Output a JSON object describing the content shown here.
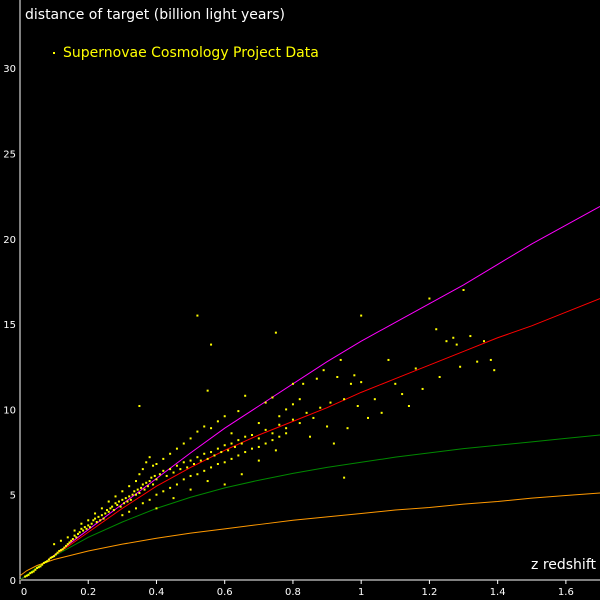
{
  "chart_data": {
    "type": "scatter",
    "ylabel": "distance of target (billion light years)",
    "xlabel": "z redshift",
    "xlim": [
      0,
      1.7
    ],
    "ylim": [
      0,
      34
    ],
    "x_ticks": [
      "0",
      "0.2",
      "0.4",
      "0.6",
      "0.8",
      "1",
      "1.2",
      "1.4",
      "1.6"
    ],
    "y_ticks": [
      "0",
      "5",
      "10",
      "15",
      "20",
      "25",
      "30"
    ],
    "legend": {
      "position": "top-left",
      "entries": [
        {
          "label": "Supernovae Cosmology Project Data",
          "color": "#ffff00"
        }
      ]
    },
    "grid": false,
    "series": [
      {
        "kind": "scatter",
        "name": "Supernovae Cosmology Project Data",
        "color": "#ffff00",
        "points": [
          [
            0.015,
            0.2
          ],
          [
            0.02,
            0.25
          ],
          [
            0.025,
            0.3
          ],
          [
            0.03,
            0.4
          ],
          [
            0.035,
            0.45
          ],
          [
            0.04,
            0.5
          ],
          [
            0.045,
            0.6
          ],
          [
            0.05,
            0.7
          ],
          [
            0.055,
            0.75
          ],
          [
            0.06,
            0.8
          ],
          [
            0.065,
            0.9
          ],
          [
            0.07,
            1.0
          ],
          [
            0.075,
            1.05
          ],
          [
            0.08,
            1.1
          ],
          [
            0.085,
            1.2
          ],
          [
            0.09,
            1.3
          ],
          [
            0.095,
            1.35
          ],
          [
            0.1,
            1.4
          ],
          [
            0.105,
            1.5
          ],
          [
            0.11,
            1.6
          ],
          [
            0.115,
            1.7
          ],
          [
            0.12,
            1.75
          ],
          [
            0.125,
            1.8
          ],
          [
            0.13,
            1.9
          ],
          [
            0.135,
            2.0
          ],
          [
            0.14,
            2.1
          ],
          [
            0.145,
            2.2
          ],
          [
            0.15,
            2.3
          ],
          [
            0.155,
            2.4
          ],
          [
            0.16,
            2.6
          ],
          [
            0.165,
            2.5
          ],
          [
            0.17,
            2.7
          ],
          [
            0.175,
            2.8
          ],
          [
            0.18,
            3.0
          ],
          [
            0.185,
            2.9
          ],
          [
            0.19,
            3.1
          ],
          [
            0.195,
            3.0
          ],
          [
            0.2,
            3.2
          ],
          [
            0.205,
            3.1
          ],
          [
            0.21,
            3.3
          ],
          [
            0.215,
            3.5
          ],
          [
            0.22,
            3.6
          ],
          [
            0.225,
            3.4
          ],
          [
            0.23,
            3.7
          ],
          [
            0.235,
            3.5
          ],
          [
            0.24,
            3.8
          ],
          [
            0.245,
            3.6
          ],
          [
            0.25,
            3.9
          ],
          [
            0.255,
            4.1
          ],
          [
            0.26,
            4.0
          ],
          [
            0.265,
            4.2
          ],
          [
            0.27,
            4.3
          ],
          [
            0.275,
            4.1
          ],
          [
            0.28,
            4.5
          ],
          [
            0.285,
            4.4
          ],
          [
            0.29,
            4.6
          ],
          [
            0.295,
            4.3
          ],
          [
            0.3,
            4.7
          ],
          [
            0.305,
            4.5
          ],
          [
            0.31,
            4.8
          ],
          [
            0.315,
            4.6
          ],
          [
            0.32,
            4.9
          ],
          [
            0.325,
            4.7
          ],
          [
            0.33,
            5.0
          ],
          [
            0.335,
            5.2
          ],
          [
            0.34,
            5.0
          ],
          [
            0.345,
            5.3
          ],
          [
            0.35,
            5.1
          ],
          [
            0.355,
            5.4
          ],
          [
            0.36,
            5.6
          ],
          [
            0.365,
            5.3
          ],
          [
            0.37,
            5.7
          ],
          [
            0.375,
            5.5
          ],
          [
            0.38,
            5.8
          ],
          [
            0.385,
            6.0
          ],
          [
            0.39,
            5.6
          ],
          [
            0.395,
            6.1
          ],
          [
            0.4,
            5.9
          ],
          [
            0.41,
            6.2
          ],
          [
            0.42,
            6.4
          ],
          [
            0.43,
            6.1
          ],
          [
            0.44,
            6.5
          ],
          [
            0.45,
            6.3
          ],
          [
            0.46,
            6.7
          ],
          [
            0.47,
            6.5
          ],
          [
            0.48,
            6.9
          ],
          [
            0.49,
            6.6
          ],
          [
            0.5,
            7.0
          ],
          [
            0.51,
            6.8
          ],
          [
            0.52,
            7.2
          ],
          [
            0.53,
            7.0
          ],
          [
            0.54,
            7.4
          ],
          [
            0.55,
            7.1
          ],
          [
            0.56,
            7.5
          ],
          [
            0.57,
            7.3
          ],
          [
            0.58,
            7.7
          ],
          [
            0.59,
            7.5
          ],
          [
            0.6,
            7.9
          ],
          [
            0.61,
            7.6
          ],
          [
            0.62,
            8.0
          ],
          [
            0.63,
            7.8
          ],
          [
            0.64,
            8.2
          ],
          [
            0.65,
            8.0
          ],
          [
            0.66,
            8.4
          ],
          [
            0.68,
            8.5
          ],
          [
            0.7,
            8.3
          ],
          [
            0.72,
            8.8
          ],
          [
            0.74,
            8.6
          ],
          [
            0.76,
            9.1
          ],
          [
            0.78,
            8.9
          ],
          [
            0.8,
            9.4
          ],
          [
            0.82,
            9.2
          ],
          [
            0.1,
            2.1
          ],
          [
            0.12,
            2.3
          ],
          [
            0.14,
            2.5
          ],
          [
            0.16,
            2.9
          ],
          [
            0.18,
            3.3
          ],
          [
            0.2,
            3.5
          ],
          [
            0.22,
            3.9
          ],
          [
            0.24,
            4.2
          ],
          [
            0.26,
            4.6
          ],
          [
            0.28,
            4.9
          ],
          [
            0.3,
            5.2
          ],
          [
            0.32,
            5.5
          ],
          [
            0.34,
            5.8
          ],
          [
            0.35,
            6.2
          ],
          [
            0.36,
            6.5
          ],
          [
            0.37,
            6.9
          ],
          [
            0.38,
            7.2
          ],
          [
            0.39,
            6.7
          ],
          [
            0.4,
            6.8
          ],
          [
            0.42,
            7.1
          ],
          [
            0.44,
            7.4
          ],
          [
            0.46,
            7.7
          ],
          [
            0.48,
            8.0
          ],
          [
            0.5,
            8.3
          ],
          [
            0.52,
            8.7
          ],
          [
            0.54,
            9.0
          ],
          [
            0.56,
            8.9
          ],
          [
            0.58,
            9.3
          ],
          [
            0.6,
            9.6
          ],
          [
            0.62,
            8.6
          ],
          [
            0.64,
            9.9
          ],
          [
            0.66,
            10.8
          ],
          [
            0.3,
            3.8
          ],
          [
            0.32,
            4.0
          ],
          [
            0.34,
            4.2
          ],
          [
            0.36,
            4.5
          ],
          [
            0.38,
            4.7
          ],
          [
            0.4,
            5.0
          ],
          [
            0.42,
            5.2
          ],
          [
            0.44,
            5.4
          ],
          [
            0.46,
            5.6
          ],
          [
            0.48,
            5.9
          ],
          [
            0.5,
            6.1
          ],
          [
            0.52,
            6.2
          ],
          [
            0.54,
            6.4
          ],
          [
            0.56,
            6.6
          ],
          [
            0.58,
            6.8
          ],
          [
            0.6,
            6.9
          ],
          [
            0.62,
            7.1
          ],
          [
            0.64,
            7.3
          ],
          [
            0.66,
            7.5
          ],
          [
            0.68,
            7.7
          ],
          [
            0.7,
            7.8
          ],
          [
            0.72,
            8.0
          ],
          [
            0.74,
            8.2
          ],
          [
            0.76,
            8.4
          ],
          [
            0.4,
            4.2
          ],
          [
            0.45,
            4.8
          ],
          [
            0.5,
            5.3
          ],
          [
            0.55,
            5.8
          ],
          [
            0.6,
            5.6
          ],
          [
            0.65,
            6.2
          ],
          [
            0.7,
            7.0
          ],
          [
            0.75,
            7.6
          ],
          [
            0.78,
            8.6
          ],
          [
            0.8,
            10.3
          ],
          [
            0.82,
            10.6
          ],
          [
            0.84,
            9.8
          ],
          [
            0.85,
            8.4
          ],
          [
            0.86,
            9.5
          ],
          [
            0.87,
            11.8
          ],
          [
            0.88,
            10.1
          ],
          [
            0.89,
            12.3
          ],
          [
            0.9,
            9.0
          ],
          [
            0.91,
            10.4
          ],
          [
            0.92,
            8.0
          ],
          [
            0.93,
            11.9
          ],
          [
            0.94,
            12.9
          ],
          [
            0.95,
            10.6
          ],
          [
            0.96,
            8.9
          ],
          [
            0.97,
            11.5
          ],
          [
            0.98,
            12.0
          ],
          [
            0.99,
            10.2
          ],
          [
            1.0,
            11.6
          ],
          [
            1.02,
            9.5
          ],
          [
            1.04,
            10.6
          ],
          [
            1.06,
            9.8
          ],
          [
            1.08,
            12.9
          ],
          [
            1.1,
            11.5
          ],
          [
            1.12,
            10.9
          ],
          [
            1.14,
            10.2
          ],
          [
            1.16,
            12.4
          ],
          [
            1.18,
            11.2
          ],
          [
            1.2,
            16.5
          ],
          [
            1.22,
            14.7
          ],
          [
            1.23,
            11.9
          ],
          [
            1.25,
            14.0
          ],
          [
            1.27,
            14.2
          ],
          [
            1.28,
            13.8
          ],
          [
            1.29,
            12.5
          ],
          [
            1.3,
            17.0
          ],
          [
            1.32,
            14.3
          ],
          [
            1.34,
            12.8
          ],
          [
            1.36,
            14.0
          ],
          [
            1.38,
            12.9
          ],
          [
            1.39,
            12.3
          ],
          [
            0.35,
            10.2
          ],
          [
            0.52,
            15.5
          ],
          [
            0.56,
            13.8
          ],
          [
            0.75,
            14.5
          ],
          [
            1.0,
            15.5
          ],
          [
            0.55,
            11.1
          ],
          [
            0.95,
            6.0
          ],
          [
            0.7,
            9.2
          ],
          [
            0.72,
            10.4
          ],
          [
            0.74,
            10.7
          ],
          [
            0.76,
            9.6
          ],
          [
            0.78,
            10.0
          ],
          [
            0.8,
            11.5
          ],
          [
            0.83,
            11.5
          ]
        ]
      },
      {
        "kind": "line",
        "color": "#ff00ff",
        "points": [
          [
            0,
            0
          ],
          [
            0.05,
            0.7
          ],
          [
            0.1,
            1.45
          ],
          [
            0.2,
            2.95
          ],
          [
            0.3,
            4.45
          ],
          [
            0.4,
            5.95
          ],
          [
            0.5,
            7.45
          ],
          [
            0.6,
            8.9
          ],
          [
            0.7,
            10.2
          ],
          [
            0.8,
            11.5
          ],
          [
            0.9,
            12.8
          ],
          [
            1.0,
            14.0
          ],
          [
            1.1,
            15.1
          ],
          [
            1.2,
            16.2
          ],
          [
            1.3,
            17.3
          ],
          [
            1.4,
            18.5
          ],
          [
            1.5,
            19.7
          ],
          [
            1.6,
            20.8
          ],
          [
            1.7,
            21.9
          ]
        ]
      },
      {
        "kind": "line",
        "color": "#ff0000",
        "points": [
          [
            0,
            0
          ],
          [
            0.05,
            0.7
          ],
          [
            0.1,
            1.4
          ],
          [
            0.2,
            2.8
          ],
          [
            0.3,
            4.2
          ],
          [
            0.4,
            5.5
          ],
          [
            0.5,
            6.6
          ],
          [
            0.6,
            7.6
          ],
          [
            0.7,
            8.5
          ],
          [
            0.8,
            9.3
          ],
          [
            0.9,
            10.1
          ],
          [
            1.0,
            11.0
          ],
          [
            1.1,
            11.8
          ],
          [
            1.2,
            12.6
          ],
          [
            1.3,
            13.4
          ],
          [
            1.4,
            14.2
          ],
          [
            1.5,
            14.9
          ],
          [
            1.6,
            15.7
          ],
          [
            1.7,
            16.5
          ]
        ]
      },
      {
        "kind": "line",
        "color": "#008800",
        "points": [
          [
            0,
            0
          ],
          [
            0.05,
            0.75
          ],
          [
            0.1,
            1.4
          ],
          [
            0.2,
            2.5
          ],
          [
            0.3,
            3.4
          ],
          [
            0.4,
            4.2
          ],
          [
            0.5,
            4.85
          ],
          [
            0.6,
            5.4
          ],
          [
            0.7,
            5.85
          ],
          [
            0.8,
            6.25
          ],
          [
            0.9,
            6.6
          ],
          [
            1.0,
            6.9
          ],
          [
            1.1,
            7.2
          ],
          [
            1.2,
            7.45
          ],
          [
            1.3,
            7.7
          ],
          [
            1.4,
            7.9
          ],
          [
            1.5,
            8.1
          ],
          [
            1.6,
            8.3
          ],
          [
            1.7,
            8.5
          ]
        ]
      },
      {
        "kind": "line",
        "color": "#ff9900",
        "points": [
          [
            0,
            0.25
          ],
          [
            0.02,
            0.55
          ],
          [
            0.05,
            0.85
          ],
          [
            0.1,
            1.2
          ],
          [
            0.2,
            1.7
          ],
          [
            0.3,
            2.1
          ],
          [
            0.4,
            2.45
          ],
          [
            0.5,
            2.75
          ],
          [
            0.6,
            3.0
          ],
          [
            0.7,
            3.25
          ],
          [
            0.8,
            3.5
          ],
          [
            0.9,
            3.7
          ],
          [
            1.0,
            3.9
          ],
          [
            1.1,
            4.1
          ],
          [
            1.2,
            4.25
          ],
          [
            1.3,
            4.45
          ],
          [
            1.4,
            4.6
          ],
          [
            1.5,
            4.8
          ],
          [
            1.6,
            4.95
          ],
          [
            1.7,
            5.1
          ]
        ]
      }
    ]
  }
}
